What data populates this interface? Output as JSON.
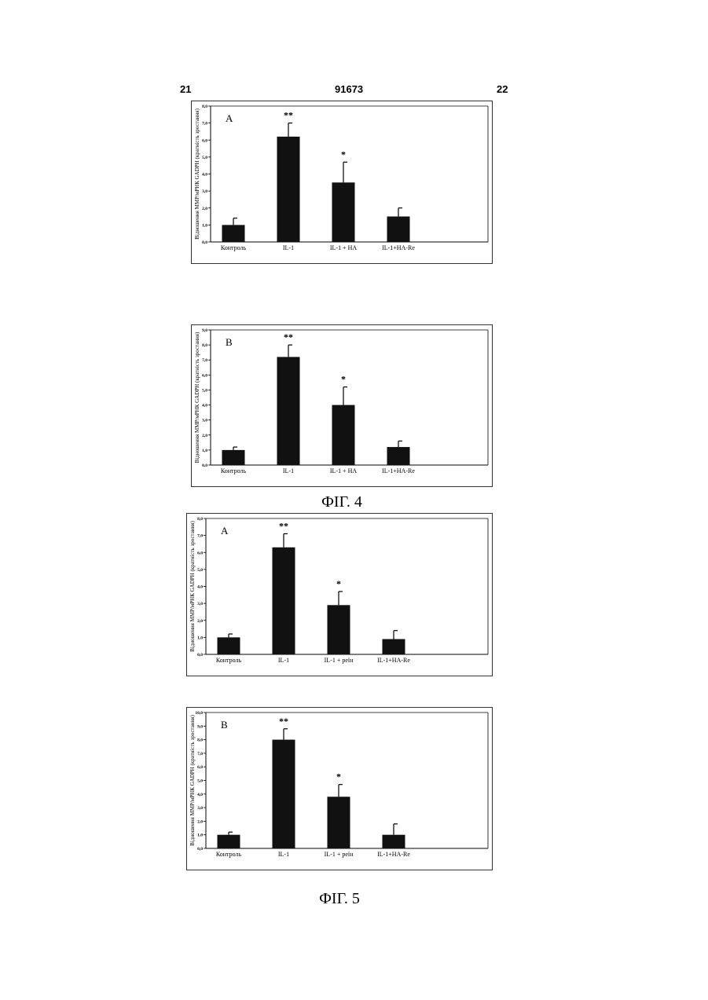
{
  "header": {
    "left_page": "21",
    "patent_number": "91673",
    "right_page": "22"
  },
  "captions": {
    "fig4": "ФІГ. 4",
    "fig5": "ФІГ. 5"
  },
  "colors": {
    "bar": "#111111",
    "frame": "#333333"
  },
  "chart_data": [
    {
      "type": "bar",
      "panel": "A",
      "ylabel": "Відношення ММР/мРНК GADPH (кратність зростання)",
      "ylim": [
        0,
        8
      ],
      "yticks": [
        "0,0",
        "1,0",
        "2,0",
        "3,0",
        "4,0",
        "5,0",
        "6,0",
        "7,0",
        "8,0"
      ],
      "categories": [
        "Контроль",
        "IL-1",
        "IL-1 + НА",
        "IL-1+НА-Re"
      ],
      "values": [
        1.0,
        6.2,
        3.5,
        1.5
      ],
      "errors": [
        0.4,
        0.8,
        1.2,
        0.5
      ],
      "annotations": [
        "",
        "**",
        "*",
        ""
      ],
      "grid": false
    },
    {
      "type": "bar",
      "panel": "В",
      "ylabel": "Відношення ММР/мРНК GADPH (кратність зростання)",
      "ylim": [
        0,
        9
      ],
      "yticks": [
        "0,0",
        "1,0",
        "2,0",
        "3,0",
        "4,0",
        "5,0",
        "6,0",
        "7,0",
        "8,0",
        "9,0"
      ],
      "categories": [
        "Контроль",
        "IL-1",
        "IL-1 + НА",
        "IL-1+НА-Re"
      ],
      "values": [
        1.0,
        7.2,
        4.0,
        1.2
      ],
      "errors": [
        0.2,
        0.8,
        1.2,
        0.4
      ],
      "annotations": [
        "",
        "**",
        "*",
        ""
      ],
      "grid": false
    },
    {
      "type": "bar",
      "panel": "A",
      "ylabel": "Відношення ММР/мРНК GADPH (кратність зростання)",
      "ylim": [
        0,
        8
      ],
      "yticks": [
        "0,0",
        "1,0",
        "2,0",
        "3,0",
        "4,0",
        "5,0",
        "6,0",
        "7,0",
        "8,0"
      ],
      "categories": [
        "Контроль",
        "IL-1",
        "IL-1 + реїн",
        "IL-1+НА-Re"
      ],
      "values": [
        1.0,
        6.3,
        2.9,
        0.9
      ],
      "errors": [
        0.2,
        0.8,
        0.8,
        0.5
      ],
      "annotations": [
        "",
        "**",
        "*",
        ""
      ],
      "grid": false
    },
    {
      "type": "bar",
      "panel": "В",
      "ylabel": "Відношення ММР/мРНК GADPH (кратність зростання)",
      "ylim": [
        0,
        10
      ],
      "yticks": [
        "0,0",
        "1,0",
        "2,0",
        "3,0",
        "4,0",
        "5,0",
        "6,0",
        "7,0",
        "8,0",
        "9,0",
        "10,0"
      ],
      "categories": [
        "Контроль",
        "IL-1",
        "IL-1 + реїн",
        "IL-1+НА-Re"
      ],
      "values": [
        1.0,
        8.0,
        3.8,
        1.0
      ],
      "errors": [
        0.2,
        0.8,
        0.9,
        0.8
      ],
      "annotations": [
        "",
        "**",
        "*",
        ""
      ],
      "grid": false
    }
  ]
}
